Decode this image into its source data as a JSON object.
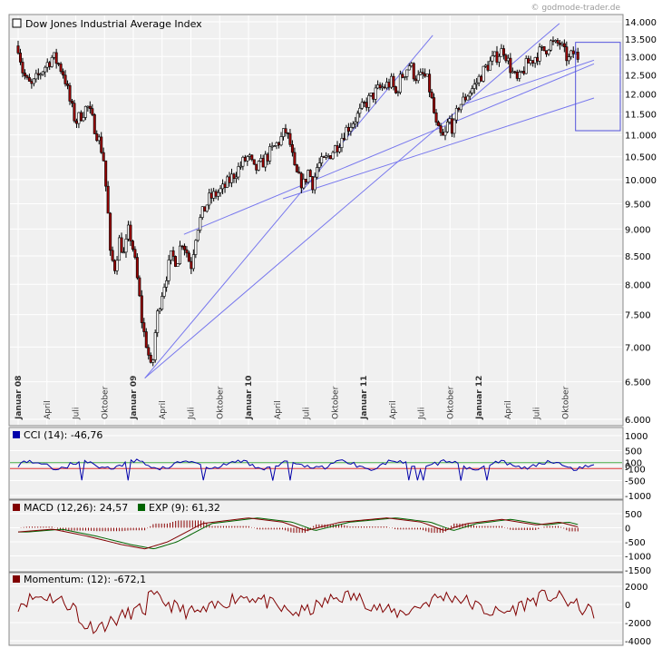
{
  "watermark": "© godmode-trader.de",
  "chart_data": [
    {
      "type": "candlestick",
      "title": "Dow Jones Industrial Average Index",
      "y_axis": {
        "ticks": [
          "14.000",
          "13.500",
          "13.000",
          "12.500",
          "12.000",
          "11.500",
          "11.000",
          "10.500",
          "10.000",
          "9.500",
          "9.000",
          "8.500",
          "8.000",
          "7.500",
          "7.000",
          "6.500",
          "6.000"
        ],
        "tick_values": [
          14000,
          13500,
          13000,
          12500,
          12000,
          11500,
          11000,
          10500,
          10000,
          9500,
          9000,
          8500,
          8000,
          7500,
          7000,
          6500,
          6000
        ],
        "log_scale": true,
        "range": [
          6000,
          14000
        ]
      },
      "x_axis": {
        "labels": [
          {
            "text": "Januar 08",
            "bold": true,
            "t": 0
          },
          {
            "text": "April",
            "bold": false,
            "t": 0.25
          },
          {
            "text": "Juli",
            "bold": false,
            "t": 0.5
          },
          {
            "text": "Oktober",
            "bold": false,
            "t": 0.75
          },
          {
            "text": "Januar 09",
            "bold": true,
            "t": 1
          },
          {
            "text": "April",
            "bold": false,
            "t": 1.25
          },
          {
            "text": "Juli",
            "bold": false,
            "t": 1.5
          },
          {
            "text": "Oktober",
            "bold": false,
            "t": 1.75
          },
          {
            "text": "Januar 10",
            "bold": true,
            "t": 2
          },
          {
            "text": "April",
            "bold": false,
            "t": 2.25
          },
          {
            "text": "Juli",
            "bold": false,
            "t": 2.5
          },
          {
            "text": "Oktober",
            "bold": false,
            "t": 2.75
          },
          {
            "text": "Januar 11",
            "bold": true,
            "t": 3
          },
          {
            "text": "April",
            "bold": false,
            "t": 3.25
          },
          {
            "text": "Juli",
            "bold": false,
            "t": 3.5
          },
          {
            "text": "Oktober",
            "bold": false,
            "t": 3.75
          },
          {
            "text": "Januar 12",
            "bold": true,
            "t": 4
          },
          {
            "text": "April",
            "bold": false,
            "t": 4.25
          },
          {
            "text": "Juli",
            "bold": false,
            "t": 4.5
          },
          {
            "text": "Oktober",
            "bold": false,
            "t": 4.75
          }
        ]
      },
      "series": [
        {
          "name": "Dow Jones Industrial Average Index",
          "points": [
            [
              0,
              13300
            ],
            [
              0.04,
              12600
            ],
            [
              0.08,
              12300
            ],
            [
              0.12,
              12200
            ],
            [
              0.18,
              12500
            ],
            [
              0.25,
              12800
            ],
            [
              0.3,
              13000
            ],
            [
              0.35,
              12800
            ],
            [
              0.4,
              12500
            ],
            [
              0.45,
              11800
            ],
            [
              0.5,
              11300
            ],
            [
              0.55,
              11500
            ],
            [
              0.6,
              11700
            ],
            [
              0.65,
              11300
            ],
            [
              0.7,
              10900
            ],
            [
              0.74,
              10500
            ],
            [
              0.78,
              9300
            ],
            [
              0.8,
              8500
            ],
            [
              0.84,
              8300
            ],
            [
              0.88,
              8800
            ],
            [
              0.92,
              8500
            ],
            [
              0.96,
              9000
            ],
            [
              1.0,
              8600
            ],
            [
              1.04,
              8000
            ],
            [
              1.08,
              7300
            ],
            [
              1.12,
              7000
            ],
            [
              1.16,
              6600
            ],
            [
              1.2,
              7400
            ],
            [
              1.24,
              7800
            ],
            [
              1.28,
              8100
            ],
            [
              1.33,
              8500
            ],
            [
              1.38,
              8400
            ],
            [
              1.42,
              8800
            ],
            [
              1.46,
              8600
            ],
            [
              1.5,
              8300
            ],
            [
              1.55,
              9000
            ],
            [
              1.6,
              9300
            ],
            [
              1.66,
              9600
            ],
            [
              1.72,
              9700
            ],
            [
              1.78,
              9800
            ],
            [
              1.84,
              10000
            ],
            [
              1.9,
              10200
            ],
            [
              1.96,
              10400
            ],
            [
              2.0,
              10500
            ],
            [
              2.05,
              10200
            ],
            [
              2.1,
              10300
            ],
            [
              2.16,
              10500
            ],
            [
              2.22,
              10700
            ],
            [
              2.28,
              10900
            ],
            [
              2.32,
              11100
            ],
            [
              2.36,
              10800
            ],
            [
              2.4,
              10200
            ],
            [
              2.44,
              10000
            ],
            [
              2.48,
              9900
            ],
            [
              2.52,
              10200
            ],
            [
              2.56,
              9900
            ],
            [
              2.6,
              10300
            ],
            [
              2.66,
              10400
            ],
            [
              2.72,
              10600
            ],
            [
              2.78,
              10800
            ],
            [
              2.84,
              11100
            ],
            [
              2.9,
              11300
            ],
            [
              2.96,
              11500
            ],
            [
              3.0,
              11700
            ],
            [
              3.06,
              11900
            ],
            [
              3.12,
              12100
            ],
            [
              3.18,
              12200
            ],
            [
              3.24,
              12300
            ],
            [
              3.28,
              12000
            ],
            [
              3.32,
              12400
            ],
            [
              3.36,
              12600
            ],
            [
              3.4,
              12800
            ],
            [
              3.44,
              12500
            ],
            [
              3.48,
              12400
            ],
            [
              3.52,
              12500
            ],
            [
              3.56,
              12300
            ],
            [
              3.6,
              11700
            ],
            [
              3.63,
              11200
            ],
            [
              3.66,
              11000
            ],
            [
              3.7,
              10900
            ],
            [
              3.74,
              11400
            ],
            [
              3.78,
              11100
            ],
            [
              3.82,
              11700
            ],
            [
              3.86,
              11800
            ],
            [
              3.9,
              12000
            ],
            [
              3.96,
              12200
            ],
            [
              4.0,
              12400
            ],
            [
              4.06,
              12700
            ],
            [
              4.12,
              12900
            ],
            [
              4.18,
              13100
            ],
            [
              4.22,
              13200
            ],
            [
              4.26,
              12800
            ],
            [
              4.3,
              12500
            ],
            [
              4.34,
              12300
            ],
            [
              4.38,
              12600
            ],
            [
              4.42,
              12800
            ],
            [
              4.46,
              12900
            ],
            [
              4.52,
              13100
            ],
            [
              4.58,
              13200
            ],
            [
              4.62,
              13400
            ],
            [
              4.66,
              13300
            ],
            [
              4.7,
              13400
            ],
            [
              4.74,
              13100
            ],
            [
              4.78,
              12900
            ],
            [
              4.82,
              13100
            ],
            [
              4.86,
              13000
            ]
          ]
        }
      ],
      "annotations": {
        "trendlines": [
          {
            "from": [
              1.1,
              6550
            ],
            "to": [
              3.6,
              13600
            ]
          },
          {
            "from": [
              1.1,
              6550
            ],
            "to": [
              4.7,
              13950
            ]
          },
          {
            "from": [
              1.44,
              8900
            ],
            "to": [
              5.0,
              12800
            ]
          },
          {
            "from": [
              2.3,
              9600
            ],
            "to": [
              5.0,
              11900
            ]
          },
          {
            "from": [
              3.88,
              11750
            ],
            "to": [
              5.0,
              12900
            ]
          }
        ],
        "box": {
          "x": [
            4.84,
            5.0
          ],
          "y": [
            11100,
            13400
          ]
        }
      }
    },
    {
      "type": "line",
      "title": "CCI (14): -46,76",
      "legend_color": "#0000aa",
      "y_axis": {
        "ticks": [
          "1000",
          "500",
          "100",
          "0",
          "-100",
          "-500",
          "-1000"
        ],
        "tick_values": [
          1000,
          500,
          100,
          0,
          -100,
          -500,
          -1000
        ],
        "range": [
          -1000,
          1000
        ],
        "reference_lines": [
          100,
          -100
        ]
      },
      "series": [
        {
          "name": "CCI (14)",
          "value": -46.76
        }
      ]
    },
    {
      "type": "line",
      "legend": [
        {
          "label": "MACD (12,26): 24,57",
          "color": "#800000"
        },
        {
          "label": "EXP (9): 61,32",
          "color": "#006400"
        }
      ],
      "y_axis": {
        "ticks": [
          "500",
          "0",
          "-500",
          "-1000",
          "-1500"
        ],
        "tick_values": [
          500,
          0,
          -500,
          -1000,
          -1500
        ],
        "range": [
          -1500,
          500
        ]
      },
      "series": [
        {
          "name": "MACD (12,26)",
          "value": 24.57
        },
        {
          "name": "EXP (9)",
          "value": 61.32
        }
      ]
    },
    {
      "type": "line",
      "title": "Momentum: (12): -672,1",
      "legend_color": "#800000",
      "y_axis": {
        "ticks": [
          "2000",
          "0",
          "-2000",
          "-4000"
        ],
        "tick_values": [
          2000,
          0,
          -2000,
          -4000
        ],
        "range": [
          -4000,
          2000
        ]
      },
      "series": [
        {
          "name": "Momentum (12)",
          "value": -672.1
        }
      ]
    }
  ]
}
